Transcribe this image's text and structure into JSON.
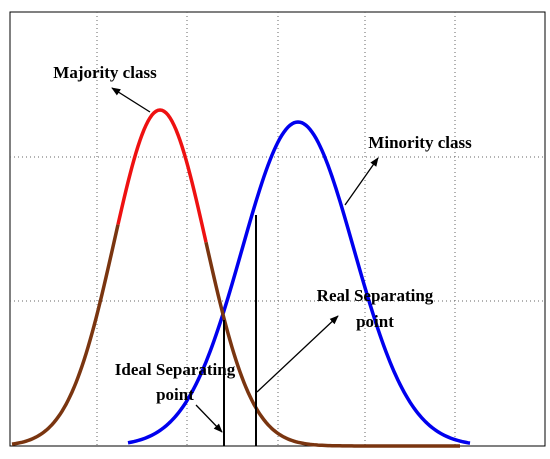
{
  "labels": {
    "majority": "Majority class",
    "minority": "Minority class",
    "real": [
      "Real Separating",
      "point"
    ],
    "ideal": [
      "Ideal Separating",
      "point"
    ]
  }
}
